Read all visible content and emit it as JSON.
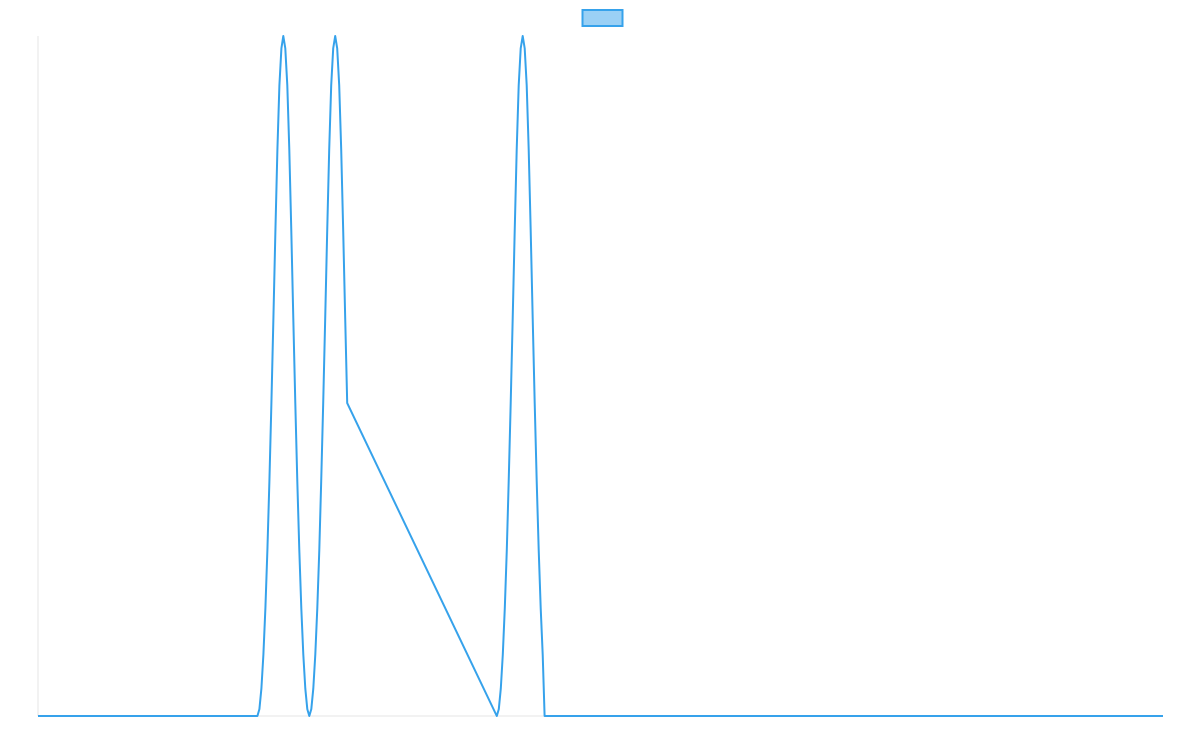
{
  "chart_data": {
    "type": "line",
    "title": "",
    "xlabel": "",
    "ylabel": "",
    "xlim": [
      0,
      1128
    ],
    "ylim": [
      0,
      1
    ],
    "grid": false,
    "legend": {
      "placement": "top-center",
      "entries": [
        {
          "label": "",
          "fill_color": "#9ad0f5",
          "stroke_color": "#36a2eb"
        }
      ]
    },
    "series": [
      {
        "color": "#36a2eb",
        "x": [
          0,
          220,
          222,
          224,
          226,
          228,
          230,
          232,
          234,
          236,
          238,
          240,
          242,
          244,
          246,
          248,
          250,
          252,
          254,
          256,
          258,
          260,
          262,
          264,
          266,
          268,
          270,
          272,
          274,
          276,
          278,
          280,
          282,
          284,
          286,
          288,
          290,
          292,
          294,
          296,
          298,
          300,
          302,
          304,
          306,
          308,
          310,
          460,
          462,
          464,
          466,
          468,
          470,
          472,
          474,
          476,
          478,
          480,
          482,
          484,
          486,
          488,
          490,
          492,
          494,
          496,
          498,
          500,
          502,
          504,
          506,
          508,
          1128
        ],
        "y": [
          0,
          0,
          0.0102,
          0.0405,
          0.0904,
          0.1587,
          0.2443,
          0.3455,
          0.4601,
          0.5847,
          0.7132,
          0.8329,
          0.9275,
          0.9818,
          1.0,
          0.9818,
          0.9275,
          0.8329,
          0.7132,
          0.5847,
          0.4601,
          0.3455,
          0.2443,
          0.1587,
          0.0904,
          0.0405,
          0.0102,
          0,
          0.0102,
          0.0405,
          0.0904,
          0.1587,
          0.2443,
          0.3455,
          0.4601,
          0.5847,
          0.7132,
          0.8329,
          0.9275,
          0.9818,
          1.0,
          0.9818,
          0.9275,
          0.8329,
          0.7132,
          0.5847,
          0.4601,
          0,
          0.0102,
          0.0405,
          0.0904,
          0.1587,
          0.2443,
          0.3455,
          0.4601,
          0.5847,
          0.7132,
          0.8329,
          0.9275,
          0.9818,
          1.0,
          0.9818,
          0.9275,
          0.8329,
          0.7132,
          0.5847,
          0.4601,
          0.3455,
          0.2443,
          0.1587,
          0.0904,
          0,
          0
        ]
      }
    ],
    "colors": {
      "axis": "#e6e6e6",
      "line": "#36a2eb",
      "legend_fill": "#9ad0f5"
    }
  }
}
